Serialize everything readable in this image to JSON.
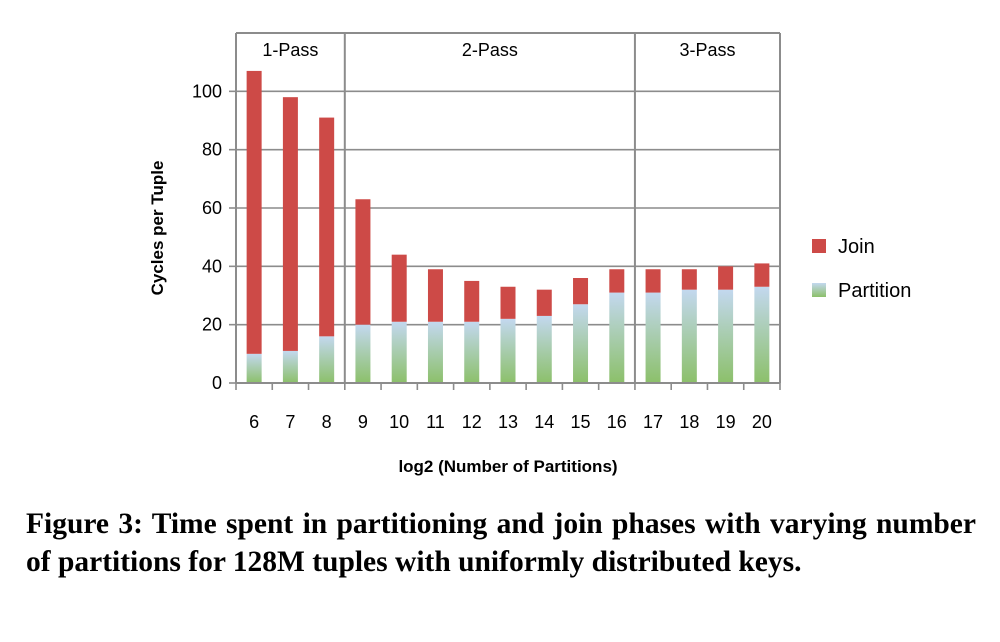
{
  "chart_data": {
    "type": "bar",
    "stacked": true,
    "categories": [
      "6",
      "7",
      "8",
      "9",
      "10",
      "11",
      "12",
      "13",
      "14",
      "15",
      "16",
      "17",
      "18",
      "19",
      "20"
    ],
    "series": [
      {
        "name": "Partition",
        "values": [
          10,
          11,
          16,
          20,
          21,
          21,
          21,
          22,
          23,
          27,
          31,
          31,
          32,
          32,
          33
        ],
        "color": "#a9cfe8"
      },
      {
        "name": "Join",
        "values": [
          97,
          87,
          75,
          43,
          23,
          18,
          14,
          11,
          9,
          9,
          8,
          8,
          7,
          8,
          8
        ],
        "color": "#cd4a47"
      }
    ],
    "partition_gradient": [
      "#c3d8ef",
      "#8cc06a"
    ],
    "xlabel": "log2 (Number of Partitions)",
    "ylabel": "Cycles per Tuple",
    "ylim": [
      0,
      120
    ],
    "yticks": [
      "0",
      "20",
      "40",
      "60",
      "80",
      "100"
    ],
    "grid": true,
    "legend": {
      "placement": "right",
      "entries": [
        "Join",
        "Partition"
      ]
    },
    "regions": [
      {
        "label": "1-Pass",
        "from": "6",
        "to": "8"
      },
      {
        "label": "2-Pass",
        "from": "9",
        "to": "16"
      },
      {
        "label": "3-Pass",
        "from": "17",
        "to": "20"
      }
    ]
  },
  "caption": "Figure 3: Time spent in partitioning and join phases with varying number of partitions for 128M tuples with uniformly distributed keys."
}
